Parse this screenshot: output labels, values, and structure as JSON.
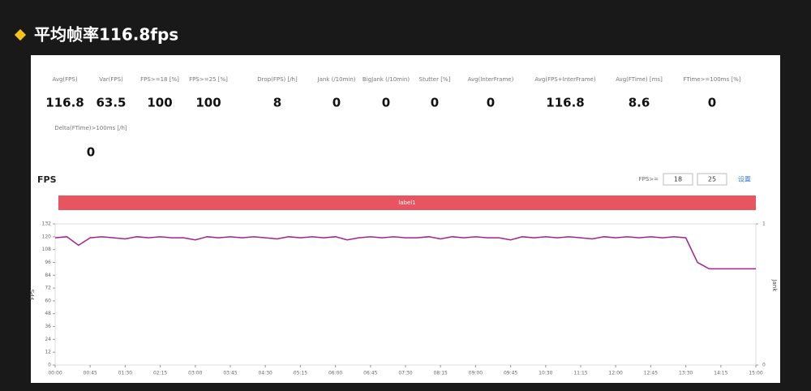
{
  "header": {
    "title": "平均帧率116.8fps"
  },
  "stats": [
    {
      "label": "Avg(FPS)",
      "value": 116.8
    },
    {
      "label": "Var(FPS)",
      "value": 63.5
    },
    {
      "label": "FPS>=18 [%]",
      "value": 100
    },
    {
      "label": "FPS>=25 [%]",
      "value": 100
    },
    {
      "label": "Drop(FPS) [/h]",
      "value": 8
    },
    {
      "label": "Jank (/10min)",
      "value": 0
    },
    {
      "label": "BigJank (/10min)",
      "value": 0
    },
    {
      "label": "Stutter [%]",
      "value": 0
    },
    {
      "label": "Avg(InterFrame)",
      "value": 0
    },
    {
      "label": "Avg(FPS+InterFrame)",
      "value": 116.8
    },
    {
      "label": "Avg(FTime) [ms]",
      "value": 8.6
    },
    {
      "label": "FTime>=100ms [%]",
      "value": 0
    },
    {
      "label": "Delta(FTime)>100ms [/h]",
      "value": 0
    }
  ],
  "controls": {
    "label": "FPS>=",
    "inputs": [
      "18",
      "25"
    ],
    "button": "设置"
  },
  "chart_data": {
    "type": "line",
    "title": "FPS",
    "band_label": "label1",
    "y_label": "FPS",
    "y2_label": "Jank",
    "x": [
      0,
      15,
      30,
      45,
      60,
      75,
      90,
      105,
      120,
      135,
      150,
      165,
      180,
      195,
      210,
      225,
      240,
      255,
      270,
      285,
      300,
      315,
      330,
      345,
      360,
      375,
      390,
      405,
      420,
      435,
      450,
      465,
      480,
      495,
      510,
      525,
      540,
      555,
      570,
      585,
      600,
      615,
      630,
      645,
      660,
      675,
      690,
      705,
      720,
      735,
      750,
      765,
      780,
      795,
      810,
      825,
      840,
      855,
      870,
      885,
      900
    ],
    "series": [
      {
        "name": "FPS",
        "color": "#a3238c",
        "values": [
          119,
          120,
          112,
          119,
          120,
          119,
          118,
          120,
          119,
          120,
          119,
          119,
          117,
          120,
          119,
          120,
          119,
          120,
          119,
          118,
          120,
          119,
          120,
          119,
          120,
          117,
          119,
          120,
          119,
          120,
          119,
          119,
          120,
          118,
          120,
          119,
          120,
          119,
          119,
          117,
          120,
          119,
          120,
          119,
          120,
          119,
          118,
          120,
          119,
          120,
          119,
          120,
          119,
          120,
          119,
          96,
          90,
          90,
          90,
          90,
          90
        ]
      }
    ],
    "xlim": [
      0,
      900
    ],
    "xticks": [
      {
        "value": 0,
        "label": "00:00"
      },
      {
        "value": 45,
        "label": "00:45"
      },
      {
        "value": 90,
        "label": "01:30"
      },
      {
        "value": 135,
        "label": "02:15"
      },
      {
        "value": 180,
        "label": "03:00"
      },
      {
        "value": 225,
        "label": "03:45"
      },
      {
        "value": 270,
        "label": "04:30"
      },
      {
        "value": 315,
        "label": "05:15"
      },
      {
        "value": 360,
        "label": "06:00"
      },
      {
        "value": 405,
        "label": "06:45"
      },
      {
        "value": 450,
        "label": "07:30"
      },
      {
        "value": 495,
        "label": "08:15"
      },
      {
        "value": 540,
        "label": "09:00"
      },
      {
        "value": 585,
        "label": "09:45"
      },
      {
        "value": 630,
        "label": "10:30"
      },
      {
        "value": 675,
        "label": "11:15"
      },
      {
        "value": 720,
        "label": "12:00"
      },
      {
        "value": 765,
        "label": "12:45"
      },
      {
        "value": 810,
        "label": "13:30"
      },
      {
        "value": 855,
        "label": "14:15"
      },
      {
        "value": 900,
        "label": "15:00"
      }
    ],
    "ylim": [
      0,
      132
    ],
    "yticks": [
      0,
      12,
      24,
      36,
      48,
      60,
      72,
      84,
      96,
      108,
      120,
      132
    ],
    "y2lim": [
      0,
      1
    ],
    "y2ticks": [
      0,
      1
    ],
    "band_color": "#e8545f"
  }
}
